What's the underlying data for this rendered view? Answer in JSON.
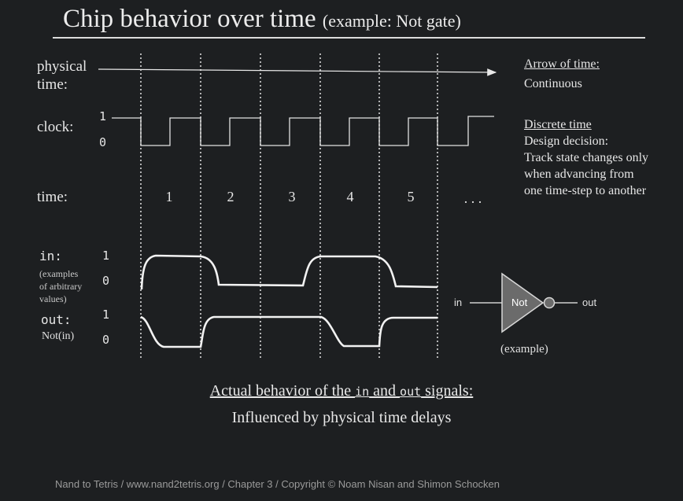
{
  "title": {
    "main": "Chip behavior over time",
    "sub": "(example: Not gate)"
  },
  "rows": {
    "physical_time": [
      "physical",
      "time:"
    ],
    "clock": "clock:",
    "time": "time:",
    "in": "in:",
    "in_note": [
      "(examples",
      "of arbitrary",
      "values)"
    ],
    "out": "out:",
    "out_note": "Not(in)",
    "level_high": "1",
    "level_low": "0"
  },
  "time_steps": [
    "1",
    "2",
    "3",
    "4",
    "5",
    ". . ."
  ],
  "side": {
    "arrow_head": "Arrow of time:",
    "arrow_body": "Continuous",
    "discrete_head": "Discrete time",
    "discrete_body": [
      "Design decision:",
      "Track state changes only",
      "when advancing from",
      "one time-step to another"
    ]
  },
  "gate": {
    "label": "Not",
    "in": "in",
    "out": "out",
    "caption": "(example)"
  },
  "caption": {
    "line1_prefix": "Actual behavior of the ",
    "in_code": "in",
    "and": " and ",
    "out_code": "out",
    "line1_suffix": " signals:",
    "line2": "Influenced by physical time delays"
  },
  "footer": "Nand to Tetris / www.nand2tetris.org / Chapter 3 / Copyright © Noam Nisan and Shimon Schocken",
  "colors": {
    "background": "#1d1f21",
    "line": "#e8e8e8",
    "gate_fill": "#6b6b6b"
  }
}
